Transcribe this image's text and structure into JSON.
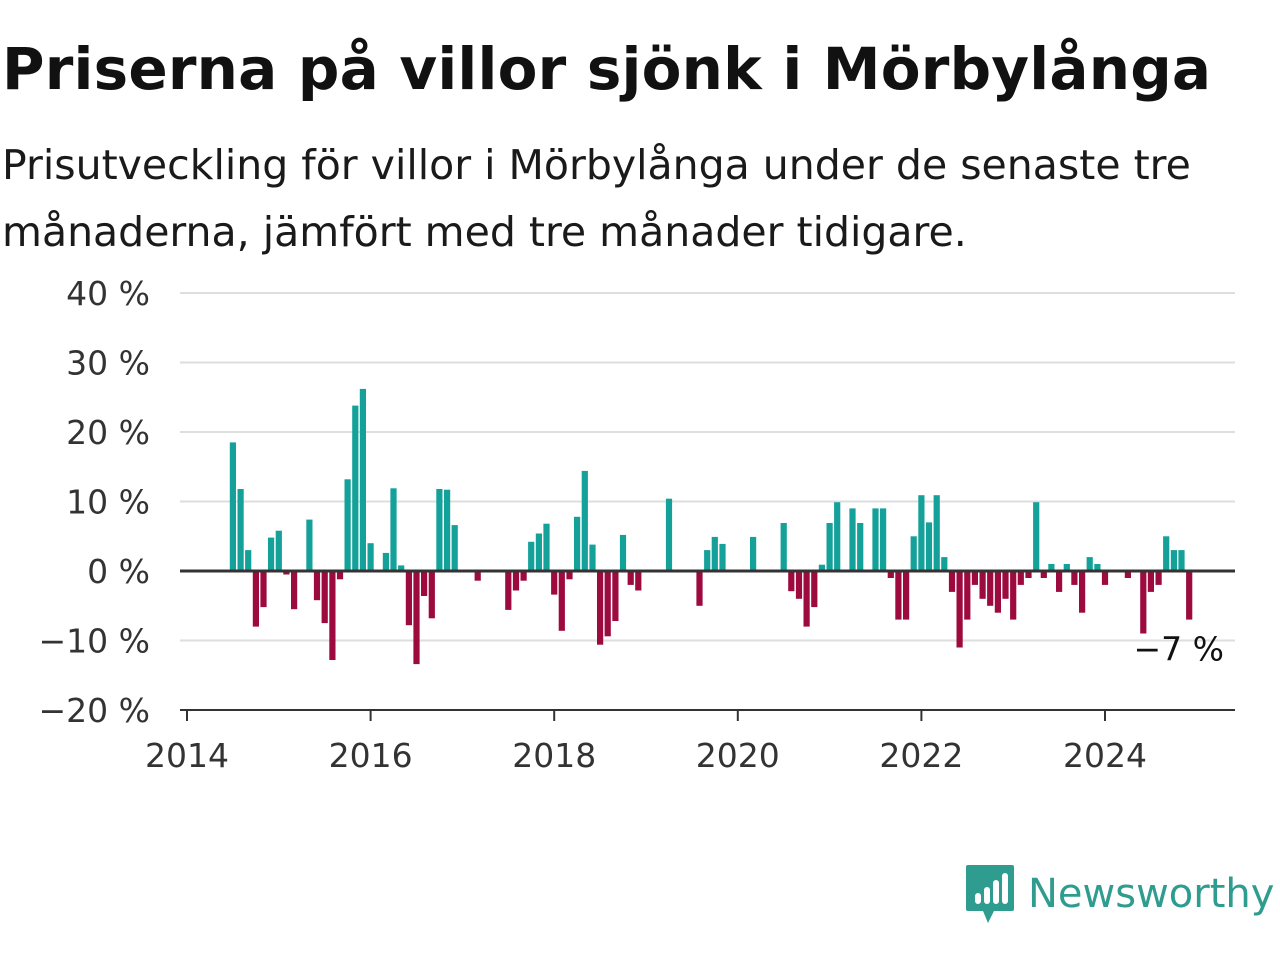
{
  "header": {
    "title": "Priserna på villor sjönk i Mörbylånga",
    "subtitle": "Prisutveckling för villor i Mörbylånga under de senaste tre månaderna, jämfört med tre månader tidigare."
  },
  "colors": {
    "positive": "#14a19a",
    "negative": "#9c0a3e",
    "grid": "#dedede",
    "axis": "#333333"
  },
  "chart_data": {
    "type": "bar",
    "unit": "%",
    "ylim": [
      -20,
      40
    ],
    "yticks": [
      -20,
      -10,
      0,
      10,
      20,
      30,
      40
    ],
    "ytick_labels": [
      "−20 %",
      "−10 %",
      "0 %",
      "10 %",
      "20 %",
      "30 %",
      "40 %"
    ],
    "xlim": [
      "2014-01",
      "2025-06"
    ],
    "xticks": [
      "2014",
      "2016",
      "2018",
      "2020",
      "2022",
      "2024"
    ],
    "grid": true,
    "last_value_label": "−7 %",
    "values": [
      {
        "x": "2014-07",
        "y": 18.5
      },
      {
        "x": "2014-08",
        "y": 11.8
      },
      {
        "x": "2014-09",
        "y": 3.0
      },
      {
        "x": "2014-10",
        "y": -8.0
      },
      {
        "x": "2014-11",
        "y": -5.2
      },
      {
        "x": "2014-12",
        "y": 4.8
      },
      {
        "x": "2015-01",
        "y": 5.8
      },
      {
        "x": "2015-02",
        "y": -0.5
      },
      {
        "x": "2015-03",
        "y": -5.5
      },
      {
        "x": "2015-05",
        "y": 7.4
      },
      {
        "x": "2015-06",
        "y": -4.2
      },
      {
        "x": "2015-07",
        "y": -7.5
      },
      {
        "x": "2015-08",
        "y": -12.8
      },
      {
        "x": "2015-09",
        "y": -1.2
      },
      {
        "x": "2015-10",
        "y": 13.2
      },
      {
        "x": "2015-11",
        "y": 23.8
      },
      {
        "x": "2015-12",
        "y": 26.2
      },
      {
        "x": "2016-01",
        "y": 4.0
      },
      {
        "x": "2016-03",
        "y": 2.6
      },
      {
        "x": "2016-04",
        "y": 11.9
      },
      {
        "x": "2016-05",
        "y": 0.8
      },
      {
        "x": "2016-06",
        "y": -7.8
      },
      {
        "x": "2016-07",
        "y": -13.4
      },
      {
        "x": "2016-08",
        "y": -3.6
      },
      {
        "x": "2016-09",
        "y": -6.8
      },
      {
        "x": "2016-10",
        "y": 11.8
      },
      {
        "x": "2016-11",
        "y": 11.7
      },
      {
        "x": "2016-12",
        "y": 6.6
      },
      {
        "x": "2017-03",
        "y": -1.4
      },
      {
        "x": "2017-07",
        "y": -5.6
      },
      {
        "x": "2017-08",
        "y": -2.8
      },
      {
        "x": "2017-09",
        "y": -1.4
      },
      {
        "x": "2017-10",
        "y": 4.2
      },
      {
        "x": "2017-11",
        "y": 5.4
      },
      {
        "x": "2017-12",
        "y": 6.8
      },
      {
        "x": "2018-01",
        "y": -3.4
      },
      {
        "x": "2018-02",
        "y": -8.6
      },
      {
        "x": "2018-03",
        "y": -1.2
      },
      {
        "x": "2018-04",
        "y": 7.8
      },
      {
        "x": "2018-05",
        "y": 14.4
      },
      {
        "x": "2018-06",
        "y": 3.8
      },
      {
        "x": "2018-07",
        "y": -10.6
      },
      {
        "x": "2018-08",
        "y": -9.4
      },
      {
        "x": "2018-09",
        "y": -7.2
      },
      {
        "x": "2018-10",
        "y": 5.2
      },
      {
        "x": "2018-11",
        "y": -2.0
      },
      {
        "x": "2018-12",
        "y": -2.8
      },
      {
        "x": "2019-04",
        "y": 10.4
      },
      {
        "x": "2019-08",
        "y": -5.0
      },
      {
        "x": "2019-09",
        "y": 3.0
      },
      {
        "x": "2019-10",
        "y": 4.9
      },
      {
        "x": "2019-11",
        "y": 3.9
      },
      {
        "x": "2020-03",
        "y": 4.9
      },
      {
        "x": "2020-07",
        "y": 6.9
      },
      {
        "x": "2020-08",
        "y": -2.9
      },
      {
        "x": "2020-09",
        "y": -4.0
      },
      {
        "x": "2020-10",
        "y": -8.0
      },
      {
        "x": "2020-11",
        "y": -5.2
      },
      {
        "x": "2020-12",
        "y": 0.9
      },
      {
        "x": "2021-01",
        "y": 6.9
      },
      {
        "x": "2021-02",
        "y": 9.9
      },
      {
        "x": "2021-04",
        "y": 9.0
      },
      {
        "x": "2021-05",
        "y": 6.9
      },
      {
        "x": "2021-07",
        "y": 9.0
      },
      {
        "x": "2021-08",
        "y": 9.0
      },
      {
        "x": "2021-09",
        "y": -1.0
      },
      {
        "x": "2021-10",
        "y": -7.0
      },
      {
        "x": "2021-11",
        "y": -7.0
      },
      {
        "x": "2021-12",
        "y": 5.0
      },
      {
        "x": "2022-01",
        "y": 10.9
      },
      {
        "x": "2022-02",
        "y": 7.0
      },
      {
        "x": "2022-03",
        "y": 10.9
      },
      {
        "x": "2022-04",
        "y": 2.0
      },
      {
        "x": "2022-05",
        "y": -3.0
      },
      {
        "x": "2022-06",
        "y": -11.0
      },
      {
        "x": "2022-07",
        "y": -7.0
      },
      {
        "x": "2022-08",
        "y": -2.0
      },
      {
        "x": "2022-09",
        "y": -4.0
      },
      {
        "x": "2022-10",
        "y": -5.0
      },
      {
        "x": "2022-11",
        "y": -6.0
      },
      {
        "x": "2022-12",
        "y": -4.0
      },
      {
        "x": "2023-01",
        "y": -7.0
      },
      {
        "x": "2023-02",
        "y": -2.0
      },
      {
        "x": "2023-03",
        "y": -1.0
      },
      {
        "x": "2023-04",
        "y": 9.9
      },
      {
        "x": "2023-05",
        "y": -1.0
      },
      {
        "x": "2023-06",
        "y": 1.0
      },
      {
        "x": "2023-07",
        "y": -3.0
      },
      {
        "x": "2023-08",
        "y": 1.0
      },
      {
        "x": "2023-09",
        "y": -2.0
      },
      {
        "x": "2023-10",
        "y": -6.0
      },
      {
        "x": "2023-11",
        "y": 2.0
      },
      {
        "x": "2023-12",
        "y": 1.0
      },
      {
        "x": "2024-01",
        "y": -2.0
      },
      {
        "x": "2024-04",
        "y": -1.0
      },
      {
        "x": "2024-06",
        "y": -9.0
      },
      {
        "x": "2024-07",
        "y": -3.0
      },
      {
        "x": "2024-08",
        "y": -2.0
      },
      {
        "x": "2024-09",
        "y": 5.0
      },
      {
        "x": "2024-10",
        "y": 3.0
      },
      {
        "x": "2024-11",
        "y": 3.0
      },
      {
        "x": "2024-12",
        "y": -7.0
      }
    ]
  },
  "logo": {
    "text": "Newsworthy",
    "icon": "bar-chart-speech-bubble-icon"
  }
}
